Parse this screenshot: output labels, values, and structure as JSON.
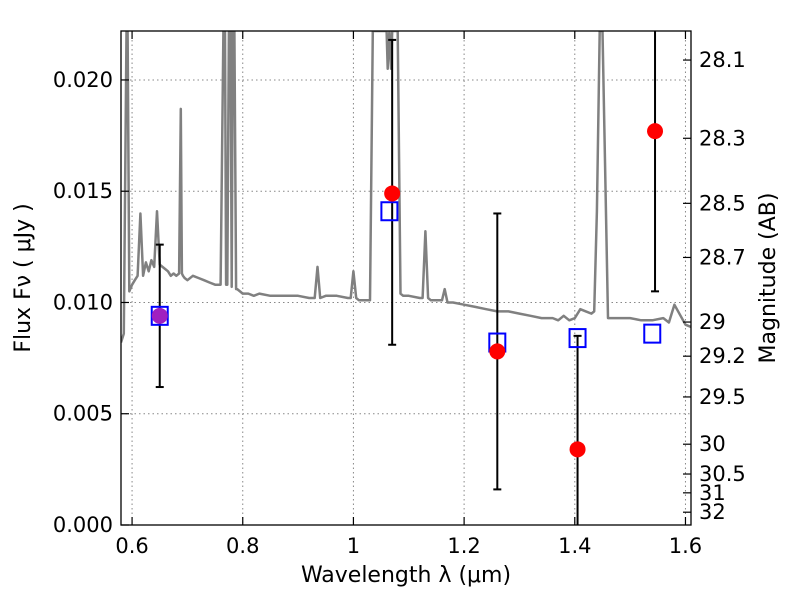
{
  "chart_data": {
    "type": "scatter",
    "xlabel": "Wavelength  λ (μm)",
    "ylabel": "Flux  Fν  ( μJy )",
    "ylabel_right": "Magnitude (AB)",
    "xlim": [
      0.58,
      1.61
    ],
    "ylim": [
      0.0,
      0.0222
    ],
    "grid": true,
    "x_ticks": [
      {
        "v": 0.6,
        "label": "0.6"
      },
      {
        "v": 0.8,
        "label": "0.8"
      },
      {
        "v": 1.0,
        "label": "1"
      },
      {
        "v": 1.2,
        "label": "1.2"
      },
      {
        "v": 1.4,
        "label": "1.4"
      },
      {
        "v": 1.6,
        "label": "1.6"
      }
    ],
    "y_ticks": [
      {
        "v": 0.0,
        "label": "0.000"
      },
      {
        "v": 0.005,
        "label": "0.005"
      },
      {
        "v": 0.01,
        "label": "0.010"
      },
      {
        "v": 0.015,
        "label": "0.015"
      },
      {
        "v": 0.02,
        "label": "0.020"
      }
    ],
    "right_ticks": [
      {
        "v": 28.1,
        "label": "28.1"
      },
      {
        "v": 28.3,
        "label": "28.3"
      },
      {
        "v": 28.5,
        "label": "28.5"
      },
      {
        "v": 28.7,
        "label": "28.7"
      },
      {
        "v": 29,
        "label": "29"
      },
      {
        "v": 29.2,
        "label": "29.2"
      },
      {
        "v": 29.5,
        "label": "29.5"
      },
      {
        "v": 30,
        "label": "30"
      },
      {
        "v": 30.5,
        "label": "30.5"
      },
      {
        "v": 31,
        "label": "31"
      },
      {
        "v": 32,
        "label": "32"
      }
    ],
    "series": [
      {
        "kind": "line",
        "color": "#808080",
        "x": [
          0.58,
          0.585,
          0.59,
          0.592,
          0.595,
          0.6,
          0.605,
          0.61,
          0.615,
          0.62,
          0.625,
          0.63,
          0.635,
          0.64,
          0.645,
          0.65,
          0.655,
          0.66,
          0.665,
          0.67,
          0.675,
          0.68,
          0.685,
          0.688,
          0.69,
          0.692,
          0.695,
          0.7,
          0.71,
          0.72,
          0.73,
          0.74,
          0.75,
          0.76,
          0.765,
          0.768,
          0.77,
          0.772,
          0.775,
          0.778,
          0.78,
          0.782,
          0.785,
          0.788,
          0.79,
          0.795,
          0.8,
          0.81,
          0.82,
          0.83,
          0.85,
          0.87,
          0.9,
          0.92,
          0.93,
          0.935,
          0.94,
          0.95,
          0.97,
          0.99,
          0.995,
          1.0,
          1.005,
          1.01,
          1.02,
          1.03,
          1.035,
          1.04,
          1.045,
          1.06,
          1.062,
          1.065,
          1.068,
          1.07,
          1.075,
          1.08,
          1.085,
          1.09,
          1.1,
          1.12,
          1.125,
          1.13,
          1.135,
          1.14,
          1.15,
          1.16,
          1.165,
          1.17,
          1.18,
          1.2,
          1.22,
          1.24,
          1.26,
          1.28,
          1.3,
          1.32,
          1.34,
          1.36,
          1.37,
          1.38,
          1.39,
          1.4,
          1.41,
          1.42,
          1.43,
          1.435,
          1.44,
          1.445,
          1.45,
          1.46,
          1.48,
          1.5,
          1.52,
          1.54,
          1.56,
          1.57,
          1.58,
          1.6,
          1.61
        ],
        "y": [
          0.0082,
          0.0086,
          0.0222,
          0.0222,
          0.0105,
          0.0108,
          0.011,
          0.0112,
          0.014,
          0.0112,
          0.0118,
          0.0114,
          0.0119,
          0.0116,
          0.0141,
          0.0117,
          0.0116,
          0.0115,
          0.0114,
          0.0112,
          0.0113,
          0.0112,
          0.0113,
          0.0187,
          0.0113,
          0.0112,
          0.0111,
          0.011,
          0.0112,
          0.0111,
          0.011,
          0.0109,
          0.0108,
          0.0108,
          0.0222,
          0.0222,
          0.0108,
          0.0108,
          0.0222,
          0.0222,
          0.0107,
          0.0222,
          0.0222,
          0.0106,
          0.0106,
          0.0105,
          0.0104,
          0.0104,
          0.0103,
          0.0104,
          0.0103,
          0.0103,
          0.0103,
          0.0102,
          0.0102,
          0.0116,
          0.0102,
          0.0103,
          0.0103,
          0.0102,
          0.0102,
          0.0114,
          0.0102,
          0.0101,
          0.0101,
          0.0101,
          0.0222,
          0.0222,
          0.0222,
          0.0222,
          0.0205,
          0.0222,
          0.0205,
          0.0222,
          0.0222,
          0.0222,
          0.0104,
          0.0103,
          0.0103,
          0.0102,
          0.0102,
          0.0132,
          0.0102,
          0.0101,
          0.0101,
          0.0101,
          0.0106,
          0.01,
          0.01,
          0.0099,
          0.0098,
          0.0097,
          0.0096,
          0.0096,
          0.0095,
          0.0094,
          0.0093,
          0.0093,
          0.0092,
          0.0094,
          0.0092,
          0.0093,
          0.0097,
          0.0096,
          0.0095,
          0.0096,
          0.0141,
          0.0222,
          0.0222,
          0.0093,
          0.0093,
          0.0093,
          0.0092,
          0.0092,
          0.0093,
          0.0091,
          0.0099,
          0.009,
          0.0089
        ]
      },
      {
        "kind": "errorbar",
        "color": "#ff0000",
        "x": [
          0.65,
          1.07,
          1.26,
          1.405,
          1.545
        ],
        "y": [
          0.0094,
          0.0149,
          0.0078,
          0.0034,
          0.0177
        ],
        "err_low": [
          0.0062,
          0.0081,
          0.0016,
          -0.001,
          0.0105
        ],
        "err_high": [
          0.0126,
          0.0218,
          0.014,
          0.0085,
          0.0245
        ]
      },
      {
        "kind": "square",
        "color": "#0000ff",
        "x": [
          0.65,
          1.065,
          1.26,
          1.405,
          1.54
        ],
        "y": [
          0.0094,
          0.0141,
          0.0082,
          0.0084,
          0.0086
        ]
      }
    ]
  }
}
